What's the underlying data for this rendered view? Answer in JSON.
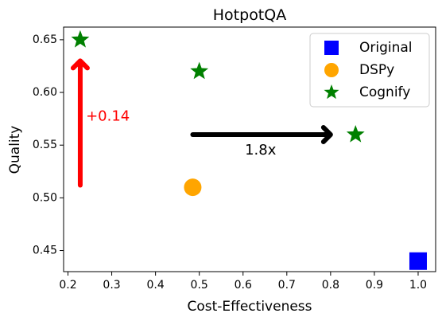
{
  "chart_data": {
    "type": "scatter",
    "title": "HotpotQA",
    "xlabel": "Cost-Effectiveness",
    "ylabel": "Quality",
    "xlim": [
      0.19,
      1.04
    ],
    "ylim": [
      0.43,
      0.662
    ],
    "xticks": [
      0.2,
      0.3,
      0.4,
      0.5,
      0.6,
      0.7,
      0.8,
      0.9,
      1.0
    ],
    "xtick_labels": [
      "0.2",
      "0.3",
      "0.4",
      "0.5",
      "0.6",
      "0.7",
      "0.8",
      "0.9",
      "1.0"
    ],
    "yticks": [
      0.45,
      0.5,
      0.55,
      0.6,
      0.65
    ],
    "ytick_labels": [
      "0.45",
      "0.50",
      "0.55",
      "0.60",
      "0.65"
    ],
    "grid": false,
    "legend_position": "top-right",
    "series": [
      {
        "name": "Original",
        "marker": "square",
        "color": "#0000ff",
        "points": [
          {
            "x": 1.0,
            "y": 0.44
          }
        ]
      },
      {
        "name": "DSPy",
        "marker": "circle",
        "color": "#ffa500",
        "points": [
          {
            "x": 0.485,
            "y": 0.51
          }
        ]
      },
      {
        "name": "Cognify",
        "marker": "star",
        "color": "#008000",
        "points": [
          {
            "x": 0.228,
            "y": 0.65
          },
          {
            "x": 0.5,
            "y": 0.62
          },
          {
            "x": 0.857,
            "y": 0.56
          }
        ]
      }
    ],
    "annotations": [
      {
        "type": "arrow",
        "color": "#ff0000",
        "from": [
          0.228,
          0.512
        ],
        "to": [
          0.228,
          0.63
        ],
        "label": "+0.14",
        "label_at": [
          0.241,
          0.577
        ]
      },
      {
        "type": "arrow",
        "color": "#000000",
        "from": [
          0.485,
          0.56
        ],
        "to": [
          0.8,
          0.56
        ],
        "label": "1.8x",
        "label_at": [
          0.64,
          0.545
        ]
      }
    ]
  }
}
